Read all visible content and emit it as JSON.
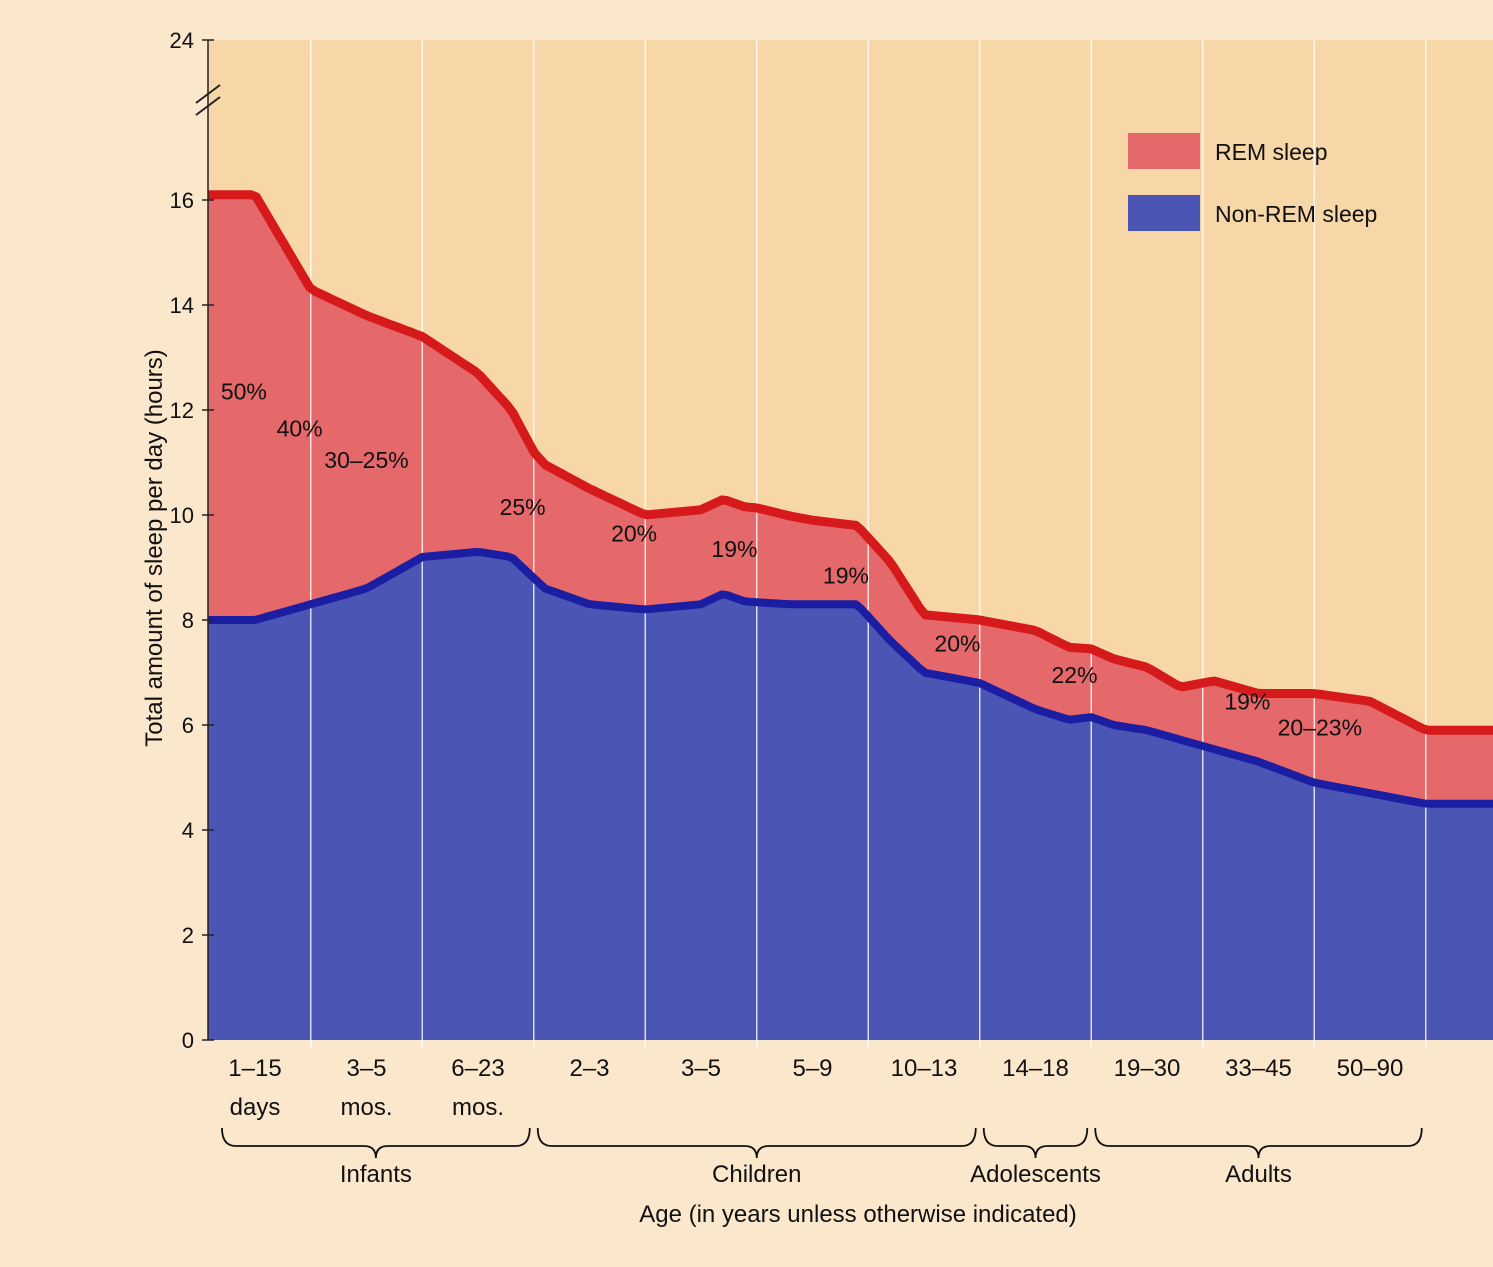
{
  "chart_data": {
    "type": "area",
    "title": "",
    "xlabel": "Age (in years unless otherwise indicated)",
    "ylabel": "Total amount of sleep per day (hours)",
    "ylim": [
      0,
      24
    ],
    "y_ticks": [
      "0",
      "2",
      "4",
      "6",
      "8",
      "10",
      "12",
      "14",
      "16",
      "24"
    ],
    "stacked": true,
    "grid": "vertical",
    "legend_position": "top-right",
    "categories": [
      "1–15",
      "3–5",
      "6–23",
      "2–3",
      "3–5",
      "5–9",
      "10–13",
      "14–18",
      "19–30",
      "33–45",
      "50–90"
    ],
    "category_units": [
      "days",
      "mos.",
      "mos.",
      "",
      "",
      "",
      "",
      "",
      "",
      "",
      ""
    ],
    "groups": [
      {
        "label": "Infants",
        "from": 0,
        "to": 2
      },
      {
        "label": "Children",
        "from": 3,
        "to": 6
      },
      {
        "label": "Adolescents",
        "from": 7,
        "to": 7
      },
      {
        "label": "Adults",
        "from": 8,
        "to": 10
      }
    ],
    "series": [
      {
        "name": "Non-REM sleep",
        "color": "#4a55b4",
        "line_color": "#1b1ea3",
        "x": [
          0,
          0.5,
          1,
          1.5,
          2,
          2.3,
          2.6,
          3,
          3.5,
          4,
          4.2,
          4.4,
          4.8,
          5,
          5.4,
          5.7,
          6,
          6.5,
          7,
          7.3,
          7.5,
          7.7,
          8,
          8.5,
          9,
          9.5,
          10,
          10.5
        ],
        "values": [
          8.0,
          8.3,
          8.6,
          9.2,
          9.3,
          9.2,
          8.6,
          8.3,
          8.2,
          8.3,
          8.5,
          8.35,
          8.3,
          8.3,
          8.3,
          7.6,
          7.0,
          6.8,
          6.3,
          6.1,
          6.15,
          6.0,
          5.9,
          5.6,
          5.3,
          4.9,
          4.7,
          4.5
        ]
      },
      {
        "name": "REM sleep",
        "color": "#e5686a",
        "line_color": "#d61a1c",
        "x": [
          0,
          0.5,
          1,
          1.5,
          2,
          2.5,
          3,
          3.5,
          4,
          4.5,
          5,
          5.4,
          5.7,
          6,
          6.5,
          7,
          7.5,
          8,
          8.3,
          8.6,
          9,
          9.5,
          10,
          10.5
        ],
        "values": [
          8.1,
          6.0,
          5.2,
          4.2,
          3.4,
          2.4,
          2.2,
          1.8,
          1.8,
          1.8,
          1.6,
          1.5,
          1.5,
          1.1,
          1.2,
          1.5,
          1.3,
          1.2,
          1.0,
          1.3,
          1.3,
          1.7,
          1.75,
          1.4
        ]
      }
    ],
    "rem_percent_labels": [
      {
        "text": "50%",
        "x": -0.1,
        "y": 12.2
      },
      {
        "text": "40%",
        "x": 0.4,
        "y": 11.5
      },
      {
        "text": "30–25%",
        "x": 1.0,
        "y": 10.9
      },
      {
        "text": "25%",
        "x": 2.4,
        "y": 10.0
      },
      {
        "text": "20%",
        "x": 3.4,
        "y": 9.5
      },
      {
        "text": "19%",
        "x": 4.3,
        "y": 9.2
      },
      {
        "text": "19%",
        "x": 5.3,
        "y": 8.7
      },
      {
        "text": "20%",
        "x": 6.3,
        "y": 7.4
      },
      {
        "text": "22%",
        "x": 7.35,
        "y": 6.8
      },
      {
        "text": "19%",
        "x": 8.9,
        "y": 6.3
      },
      {
        "text": "20–23%",
        "x": 9.55,
        "y": 5.8
      }
    ]
  }
}
